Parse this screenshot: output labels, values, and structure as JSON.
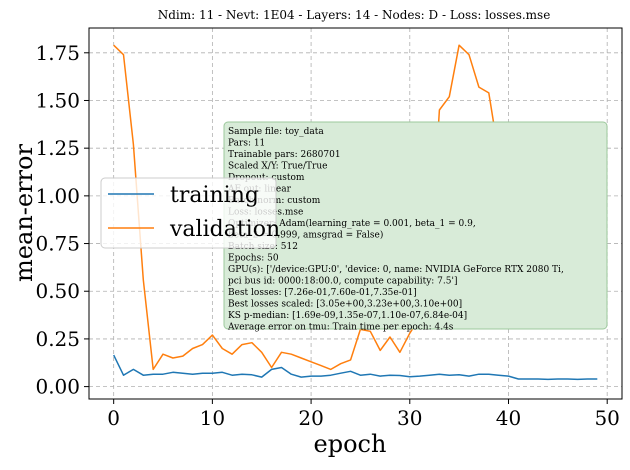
{
  "chart_data": {
    "type": "line",
    "title": "Ndim: 11 - Nevt: 1E04 - Layers: 14 - Nodes: D - Loss: losses.mse",
    "xlabel": "epoch",
    "ylabel": "mean-error",
    "xlim": [
      -2.5,
      51.5
    ],
    "ylim": [
      -0.065,
      1.88
    ],
    "x_ticks": [
      0,
      10,
      20,
      30,
      40,
      50
    ],
    "y_ticks": [
      0.0,
      0.25,
      0.5,
      0.75,
      1.0,
      1.25,
      1.5,
      1.75
    ],
    "x_tick_labels": [
      "0",
      "10",
      "20",
      "30",
      "40",
      "50"
    ],
    "y_tick_labels": [
      "0.00",
      "0.25",
      "0.50",
      "0.75",
      "1.00",
      "1.25",
      "1.50",
      "1.75"
    ],
    "grid": true,
    "legend_position": "center-left",
    "x": [
      0,
      1,
      2,
      3,
      4,
      5,
      6,
      7,
      8,
      9,
      10,
      11,
      12,
      13,
      14,
      15,
      16,
      17,
      18,
      19,
      20,
      21,
      22,
      23,
      24,
      25,
      26,
      27,
      28,
      29,
      30,
      31,
      32,
      33,
      34,
      35,
      36,
      37,
      38,
      39,
      40,
      41,
      42,
      43,
      44,
      45,
      46,
      47,
      48,
      49
    ],
    "series": [
      {
        "name": "training",
        "color": "#1f77b4",
        "values": [
          0.165,
          0.06,
          0.09,
          0.06,
          0.065,
          0.065,
          0.075,
          0.07,
          0.065,
          0.07,
          0.07,
          0.075,
          0.06,
          0.065,
          0.062,
          0.05,
          0.09,
          0.1,
          0.065,
          0.05,
          0.055,
          0.055,
          0.06,
          0.07,
          0.08,
          0.06,
          0.065,
          0.055,
          0.06,
          0.058,
          0.052,
          0.055,
          0.06,
          0.065,
          0.06,
          0.062,
          0.055,
          0.065,
          0.065,
          0.06,
          0.055,
          0.04,
          0.04,
          0.04,
          0.038,
          0.04,
          0.04,
          0.038,
          0.04,
          0.04
        ]
      },
      {
        "name": "validation",
        "color": "#ff7f0e",
        "values": [
          1.79,
          1.74,
          1.27,
          0.56,
          0.09,
          0.17,
          0.15,
          0.16,
          0.2,
          0.22,
          0.27,
          0.2,
          0.17,
          0.22,
          0.23,
          0.18,
          0.1,
          0.18,
          0.17,
          0.15,
          0.13,
          0.11,
          0.09,
          0.12,
          0.14,
          0.3,
          0.29,
          0.19,
          0.26,
          0.18,
          0.28,
          0.36,
          0.6,
          1.45,
          1.52,
          1.79,
          1.74,
          1.57,
          1.54,
          1.22,
          0.91,
          0.91,
          0.88,
          0.85,
          0.8,
          0.77,
          0.76,
          0.74,
          0.67,
          0.67
        ]
      }
    ],
    "annotation_lines": [
      "Sample file: toy_data",
      "Pars: 11",
      "Trainable pars: 2680701",
      "Scaled X/Y: True/True",
      "Dropout: custom",
      "AF out: linear",
      "Batch norm: custom",
      "Loss: losses.mse",
      "Optimizer: Adam(learning_rate = 0.001, beta_1 = 0.9,",
      "beta_2 = 0.999, amsgrad = False)",
      "Batch size: 512",
      "Epochs: 50",
      "GPU(s): ['/device:GPU:0', 'device: 0, name: NVIDIA GeForce RTX 2080 Ti,",
      "pci bus id: 0000:18:00.0, compute capability: 7.5']",
      "Best losses: [7.26e-01,7.60e-01,7.35e-01]",
      "Best losses scaled: [3.05e+00,3.23e+00,3.10e+00]",
      "KS p-median: [1.69e-09,1.35e-07,1.10e-07,6.84e-04]",
      "Average error on tmu: Train time per epoch: 4.4s"
    ],
    "annotation_box_color": "#d8ebd8",
    "annotation_box_edge": "#9cc89c"
  }
}
